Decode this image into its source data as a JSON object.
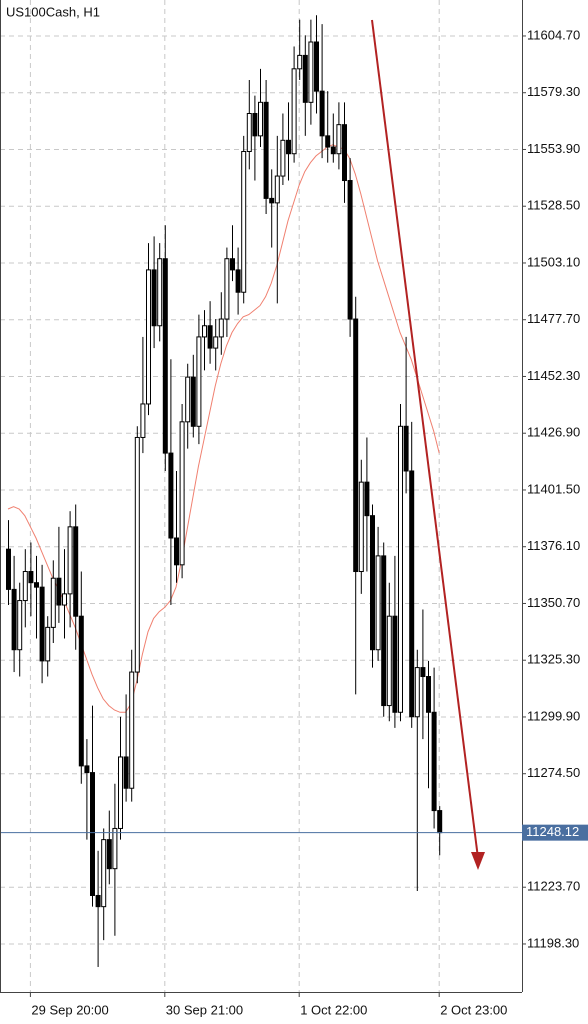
{
  "chart_data": {
    "type": "candlestick",
    "title": "US100Cash, H1",
    "categories": [
      null,
      null,
      null,
      null,
      "29 Sep 20:00",
      null,
      null,
      null,
      null,
      null,
      null,
      null,
      null,
      null,
      null,
      null,
      null,
      null,
      null,
      null,
      null,
      null,
      null,
      null,
      null,
      null,
      null,
      null,
      "30 Sep 21:00",
      null,
      null,
      null,
      null,
      null,
      null,
      null,
      null,
      null,
      null,
      null,
      null,
      null,
      null,
      null,
      null,
      null,
      null,
      null,
      null,
      null,
      null,
      null,
      "1 Oct 22:00",
      null,
      null,
      null,
      null,
      null,
      null,
      null,
      null,
      null,
      null,
      null,
      null,
      null,
      null,
      null,
      null,
      null,
      null,
      null,
      null,
      null,
      null,
      null,
      null,
      "2 Oct 23:00"
    ],
    "open": [
      11375,
      11357,
      11330,
      11352,
      11365,
      11360,
      11358,
      11325,
      11340,
      11362,
      11350,
      11355,
      11385,
      11345,
      11278,
      11275,
      11220,
      11215,
      11245,
      11232,
      11250,
      11282,
      11268,
      11320,
      11425,
      11440,
      11500,
      11475,
      11505,
      11418,
      11380,
      11368,
      11432,
      11452,
      11430,
      11470,
      11475,
      11465,
      11470,
      11478,
      11505,
      11500,
      11490,
      11553,
      11570,
      11560,
      11575,
      11532,
      11530,
      11542,
      11558,
      11552,
      11590,
      11596,
      11575,
      11602,
      11580,
      11560,
      11555,
      11552,
      11565,
      11540,
      11478,
      11365,
      11405,
      11390,
      11330,
      11372,
      11305,
      11345,
      11302,
      11430,
      11410,
      11300,
      11322,
      11318,
      11302,
      11258
    ],
    "high": [
      11388,
      11372,
      11360,
      11375,
      11378,
      11372,
      11368,
      11345,
      11370,
      11385,
      11375,
      11392,
      11395,
      11365,
      11290,
      11305,
      11240,
      11250,
      11258,
      11270,
      11300,
      11310,
      11330,
      11430,
      11470,
      11512,
      11515,
      11512,
      11520,
      11460,
      11410,
      11440,
      11458,
      11462,
      11480,
      11482,
      11486,
      11478,
      11490,
      11510,
      11520,
      11510,
      11560,
      11585,
      11578,
      11590,
      11585,
      11545,
      11560,
      11570,
      11575,
      11600,
      11612,
      11605,
      11612,
      11614,
      11610,
      11580,
      11570,
      11575,
      11575,
      11550,
      11488,
      11415,
      11425,
      11395,
      11385,
      11378,
      11360,
      11372,
      11440,
      11470,
      11432,
      11330,
      11348,
      11325,
      11322,
      11260
    ],
    "low": [
      11350,
      11320,
      11318,
      11340,
      11345,
      11335,
      11315,
      11318,
      11333,
      11342,
      11335,
      11340,
      11330,
      11270,
      11245,
      11215,
      11188,
      11200,
      11225,
      11202,
      11245,
      11262,
      11262,
      11315,
      11418,
      11435,
      11465,
      11468,
      11410,
      11350,
      11360,
      11362,
      11420,
      11425,
      11422,
      11455,
      11458,
      11455,
      11462,
      11470,
      11495,
      11480,
      11485,
      11545,
      11540,
      11555,
      11525,
      11510,
      11485,
      11538,
      11540,
      11548,
      11585,
      11560,
      11565,
      11570,
      11550,
      11548,
      11548,
      11545,
      11530,
      11470,
      11310,
      11355,
      11365,
      11322,
      11325,
      11300,
      11298,
      11295,
      11298,
      11400,
      11295,
      11222,
      11290,
      11268,
      11250,
      11238
    ],
    "close": [
      11357,
      11330,
      11352,
      11365,
      11360,
      11358,
      11325,
      11340,
      11362,
      11350,
      11355,
      11385,
      11345,
      11278,
      11275,
      11220,
      11215,
      11245,
      11232,
      11250,
      11282,
      11268,
      11320,
      11425,
      11440,
      11500,
      11475,
      11505,
      11418,
      11380,
      11368,
      11432,
      11452,
      11430,
      11470,
      11475,
      11465,
      11470,
      11478,
      11505,
      11500,
      11490,
      11553,
      11570,
      11560,
      11575,
      11532,
      11530,
      11542,
      11558,
      11552,
      11590,
      11596,
      11575,
      11602,
      11580,
      11560,
      11555,
      11552,
      11565,
      11540,
      11478,
      11365,
      11405,
      11390,
      11330,
      11372,
      11305,
      11345,
      11302,
      11430,
      11410,
      11300,
      11322,
      11318,
      11302,
      11258,
      11248.12
    ],
    "up_color": "#ffffff",
    "down_color": "#000000",
    "series": [
      {
        "color": "#f08070",
        "values": [
          11393,
          11394,
          11393,
          11390,
          11385,
          11380,
          11374,
          11368,
          11362,
          11357,
          11352,
          11346,
          11340,
          11333,
          11326,
          11319,
          11313,
          11308,
          11305,
          11303,
          11302,
          11302,
          11306,
          11316,
          11328,
          11338,
          11344,
          11347,
          11349,
          11352,
          11358,
          11370,
          11384,
          11398,
          11412,
          11424,
          11436,
          11448,
          11458,
          11466,
          11472,
          11476,
          11479,
          11480,
          11482,
          11484,
          11488,
          11494,
          11502,
          11512,
          11522,
          11530,
          11538,
          11544,
          11548,
          11551,
          11553,
          11555,
          11556,
          11555,
          11554,
          11550,
          11543,
          11534,
          11524,
          11514,
          11504,
          11496,
          11488,
          11480,
          11472,
          11466,
          11460,
          11452,
          11444,
          11436,
          11428,
          11418
        ]
      }
    ],
    "current_price": {
      "value": 11248.12,
      "label": "11248.12",
      "color": "#4a6fa0"
    },
    "ylim": [
      11176.8,
      11620.8
    ],
    "yticks": [
      {
        "value": 11198.3,
        "label": "11198.30"
      },
      {
        "value": 11223.7,
        "label": "11223.70"
      },
      {
        "value": 11274.5,
        "label": "11274.50"
      },
      {
        "value": 11299.9,
        "label": "11299.90"
      },
      {
        "value": 11325.3,
        "label": "11325.30"
      },
      {
        "value": 11350.7,
        "label": "11350.70"
      },
      {
        "value": 11376.1,
        "label": "11376.10"
      },
      {
        "value": 11401.5,
        "label": "11401.50"
      },
      {
        "value": 11426.9,
        "label": "11426.90"
      },
      {
        "value": 11452.3,
        "label": "11452.30"
      },
      {
        "value": 11477.7,
        "label": "11477.70"
      },
      {
        "value": 11503.1,
        "label": "11503.10"
      },
      {
        "value": 11528.5,
        "label": "11528.50"
      },
      {
        "value": 11553.9,
        "label": "11553.90"
      },
      {
        "value": 11579.3,
        "label": "11579.30"
      },
      {
        "value": 11604.7,
        "label": "11604.70"
      }
    ],
    "grid": true
  }
}
